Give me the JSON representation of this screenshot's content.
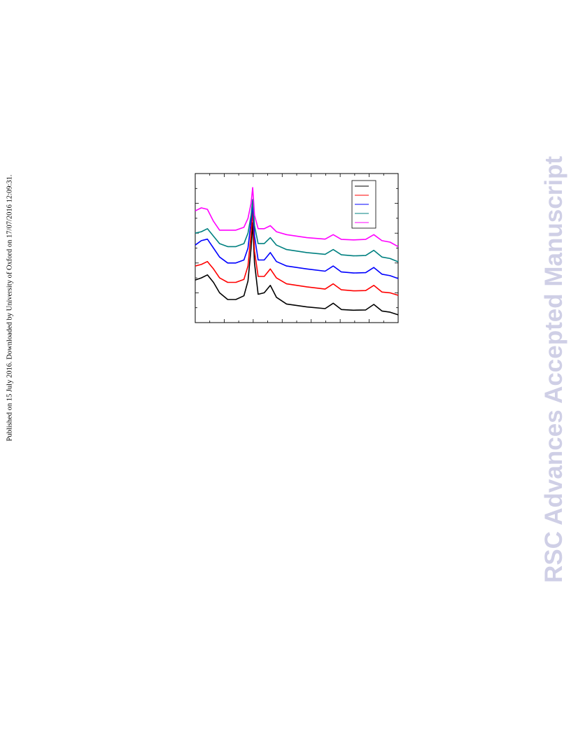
{
  "side_note": "Published on 15 July 2016. Downloaded by University of Oxford on 17/07/2016 12:09:31.",
  "watermark": "RSC Advances Accepted Manuscript",
  "chart_data": {
    "type": "line",
    "x": [
      0,
      3,
      6,
      9,
      12,
      16,
      20,
      24,
      26,
      27.5,
      28.3,
      29.2,
      31,
      34,
      37,
      40,
      45,
      55,
      64,
      68,
      72,
      78,
      84,
      88,
      92,
      96,
      100
    ],
    "xlim": [
      0,
      100
    ],
    "ylim": [
      0,
      100
    ],
    "series": [
      {
        "color": "#000000",
        "values": [
          28.6,
          30,
          32,
          27,
          20,
          15.5,
          15.5,
          18,
          28,
          50,
          67,
          40,
          19,
          20,
          25,
          17,
          12.5,
          10.5,
          9.4,
          13,
          8.8,
          8.3,
          8.5,
          12.2,
          7.8,
          7,
          5.2
        ]
      },
      {
        "color": "#ff0000",
        "values": [
          38,
          39,
          41,
          36,
          30,
          27,
          27,
          29,
          38,
          60,
          75.6,
          48,
          31,
          31,
          36,
          30,
          26,
          24,
          22.5,
          26,
          22,
          21.3,
          21.5,
          25,
          20.5,
          20,
          18.3
        ]
      },
      {
        "color": "#0000ff",
        "values": [
          52,
          55,
          56,
          50,
          44,
          40,
          40,
          42,
          50,
          68,
          80,
          58,
          42,
          42,
          47,
          41,
          38,
          36,
          34.5,
          38,
          34,
          33.3,
          33.5,
          37,
          32.5,
          31.5,
          29.6
        ]
      },
      {
        "color": "#008080",
        "values": [
          60,
          61,
          63,
          58,
          53,
          51,
          51,
          53,
          60,
          72,
          82.6,
          65,
          53,
          53,
          57,
          52,
          49,
          47,
          45.8,
          49,
          45.5,
          44.8,
          45,
          48.5,
          44,
          43,
          40.8
        ]
      },
      {
        "color": "#ff00ff",
        "values": [
          75,
          77,
          76,
          68,
          62,
          62,
          62,
          64,
          70,
          80,
          90.6,
          72,
          63,
          63,
          65,
          61,
          59,
          57,
          56,
          59,
          55.8,
          55.5,
          55.8,
          59,
          55,
          54,
          51
        ]
      }
    ]
  }
}
